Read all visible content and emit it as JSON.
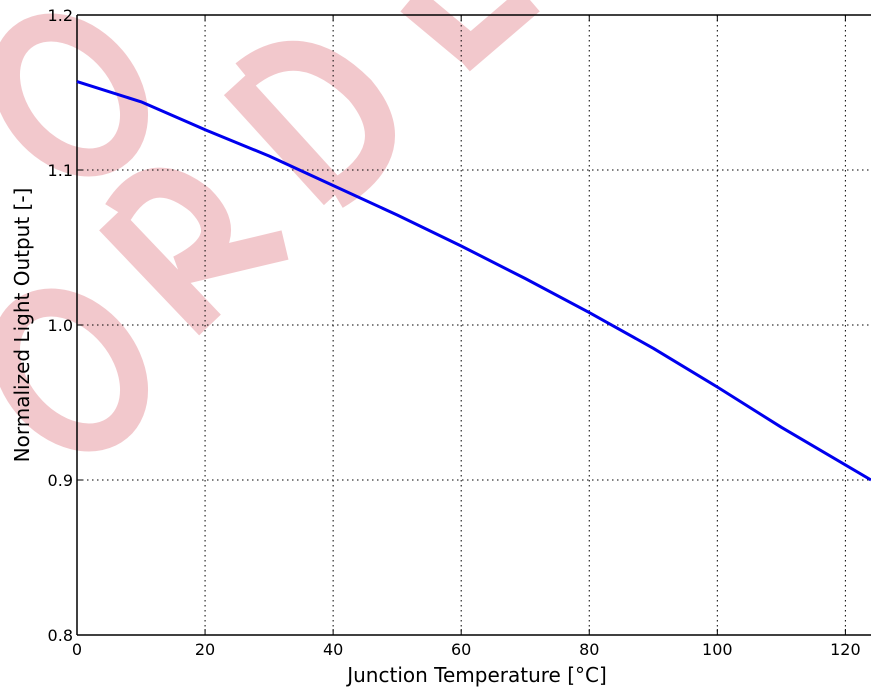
{
  "chart_data": {
    "type": "line",
    "title": "",
    "xlabel": "Junction Temperature [°C]",
    "ylabel": "Normalized Light Output [-]",
    "xlim": [
      0,
      124
    ],
    "ylim": [
      0.8,
      1.2
    ],
    "xticks": [
      0,
      20,
      40,
      60,
      80,
      100,
      120
    ],
    "yticks": [
      0.8,
      0.9,
      1.0,
      1.1,
      1.2
    ],
    "xtick_labels": [
      "0",
      "20",
      "40",
      "60",
      "80",
      "100",
      "120"
    ],
    "ytick_labels": [
      "0.8",
      "0.9",
      "1.0",
      "1.1",
      "1.2"
    ],
    "grid": true,
    "series": [
      {
        "color": "#0000ee",
        "x": [
          0,
          10,
          20,
          30,
          40,
          50,
          60,
          70,
          80,
          90,
          100,
          110,
          124
        ],
        "y": [
          1.157,
          1.144,
          1.126,
          1.109,
          1.09,
          1.071,
          1.051,
          1.03,
          1.008,
          0.985,
          0.96,
          0.934,
          0.9
        ]
      }
    ]
  },
  "watermark_color": "#e89aa2"
}
